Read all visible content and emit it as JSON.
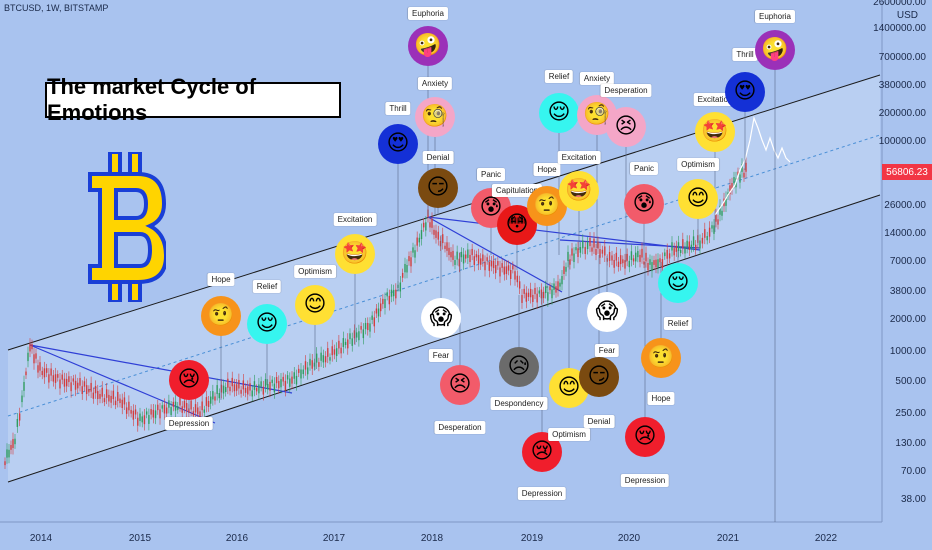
{
  "header": {
    "symbol": "BTCUSD, 1W, BITSTAMP"
  },
  "title": "The market Cycle of Emotions",
  "y_axis": {
    "unit": "USD",
    "ticks": [
      "2600000.00",
      "1400000.00",
      "700000.00",
      "380000.00",
      "200000.00",
      "100000.00",
      "26000.00",
      "14000.00",
      "7000.00",
      "3800.00",
      "2000.00",
      "1000.00",
      "500.00",
      "250.00",
      "130.00",
      "70.00",
      "38.00"
    ],
    "current_price": "56806.23"
  },
  "x_axis": {
    "ticks": [
      "2014",
      "2015",
      "2016",
      "2017",
      "2018",
      "2019",
      "2020",
      "2021",
      "2022"
    ]
  },
  "colors": {
    "background": "#a9c3ef",
    "channel": "#1a1a1a",
    "trend": "#2f3fd6",
    "up_candle": "#2e9c5e",
    "down_candle": "#d33c3c",
    "price_tag": "#f23645"
  },
  "emotions": [
    {
      "label": "Depression",
      "color": "#f01e2c",
      "icon": "sad-face"
    },
    {
      "label": "Hope",
      "color": "#f7931a",
      "icon": "hopeful-face"
    },
    {
      "label": "Relief",
      "color": "#36f5ef",
      "icon": "relieved-face"
    },
    {
      "label": "Optimism",
      "color": "#ffe033",
      "icon": "smiling-face"
    },
    {
      "label": "Excitation",
      "color": "#ffe033",
      "icon": "star-eyes-face"
    },
    {
      "label": "Thrill",
      "color": "#1430d6",
      "icon": "heart-eyes-face"
    },
    {
      "label": "Euphoria",
      "color": "#9b30b8",
      "icon": "crazy-face"
    },
    {
      "label": "Anxiety",
      "color": "#f4a6c7",
      "icon": "monocle-face"
    },
    {
      "label": "Denial",
      "color": "#7a4a10",
      "icon": "smirk-face"
    },
    {
      "label": "Fear",
      "color": "#ffffff",
      "icon": "scream-face"
    },
    {
      "label": "Desperation",
      "color": "#f25b6a",
      "icon": "persevere-face"
    },
    {
      "label": "Panic",
      "color": "#f25b6a",
      "icon": "cold-sweat-face"
    },
    {
      "label": "Capitulation",
      "color": "#e81818",
      "icon": "flushed-face"
    },
    {
      "label": "Despondency",
      "color": "#6b6b6b",
      "icon": "crying-face"
    },
    {
      "label": "Depression",
      "color": "#f01e2c",
      "icon": "sad-face"
    },
    {
      "label": "Hope",
      "color": "#f7931a",
      "icon": "hopeful-face"
    },
    {
      "label": "Excitation",
      "color": "#ffe033",
      "icon": "star-eyes-face"
    },
    {
      "label": "Relief",
      "color": "#36f5ef",
      "icon": "relieved-face"
    },
    {
      "label": "Anxiety",
      "color": "#f4a6c7",
      "icon": "monocle-face"
    },
    {
      "label": "Desperation",
      "color": "#f4a6c7",
      "icon": "persevere-face"
    },
    {
      "label": "Optimism",
      "color": "#ffe033",
      "icon": "smiling-face"
    },
    {
      "label": "Denial",
      "color": "#7a4a10",
      "icon": "smirk-face"
    },
    {
      "label": "Fear",
      "color": "#ffffff",
      "icon": "scream-face"
    },
    {
      "label": "Panic",
      "color": "#f25b6a",
      "icon": "cold-sweat-face"
    },
    {
      "label": "Depression",
      "color": "#f01e2c",
      "icon": "sad-face"
    },
    {
      "label": "Relief",
      "color": "#36f5ef",
      "icon": "relieved-face"
    },
    {
      "label": "Hope",
      "color": "#f7931a",
      "icon": "hopeful-face"
    },
    {
      "label": "Optimism",
      "color": "#ffe033",
      "icon": "smiling-face"
    },
    {
      "label": "Excitation",
      "color": "#ffe033",
      "icon": "star-eyes-face"
    },
    {
      "label": "Thrill",
      "color": "#1430d6",
      "icon": "heart-eyes-face"
    },
    {
      "label": "Euphoria",
      "color": "#9b30b8",
      "icon": "crazy-face"
    }
  ]
}
